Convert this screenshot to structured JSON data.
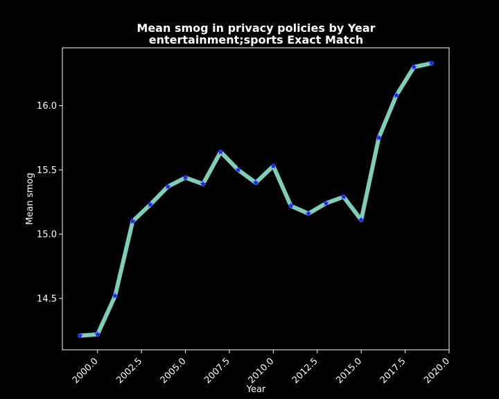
{
  "chart_data": {
    "type": "line",
    "title_line1": "Mean smog in privacy policies by Year",
    "title_line2": "entertainment;sports Exact Match",
    "xlabel": "Year",
    "ylabel": "Mean smog",
    "xlim": [
      1998.0,
      2020.0
    ],
    "ylim": [
      14.1,
      16.45
    ],
    "xticks": [
      2000.0,
      2002.5,
      2005.0,
      2007.5,
      2010.0,
      2012.5,
      2015.0,
      2017.5,
      2020.0
    ],
    "xtick_labels": [
      "2000.0",
      "2002.5",
      "2005.0",
      "2007.5",
      "2010.0",
      "2012.5",
      "2015.0",
      "2017.5",
      "2020.0"
    ],
    "yticks": [
      14.5,
      15.0,
      15.5,
      16.0
    ],
    "ytick_labels": [
      "14.5",
      "15.0",
      "15.5",
      "16.0"
    ],
    "grid": false,
    "series": [
      {
        "line_color": "#7fcdbb",
        "marker_color": "#1f1fff",
        "marker": "star",
        "x": [
          1999,
          2000,
          2001,
          2002,
          2003,
          2004,
          2005,
          2006,
          2007,
          2008,
          2009,
          2010,
          2011,
          2012,
          2013,
          2014,
          2015,
          2016,
          2017,
          2018,
          2019
        ],
        "y": [
          14.21,
          14.22,
          14.52,
          15.1,
          15.23,
          15.37,
          15.44,
          15.39,
          15.64,
          15.5,
          15.4,
          15.53,
          15.22,
          15.16,
          15.24,
          15.29,
          15.11,
          15.75,
          16.08,
          16.3,
          16.33
        ]
      }
    ]
  }
}
